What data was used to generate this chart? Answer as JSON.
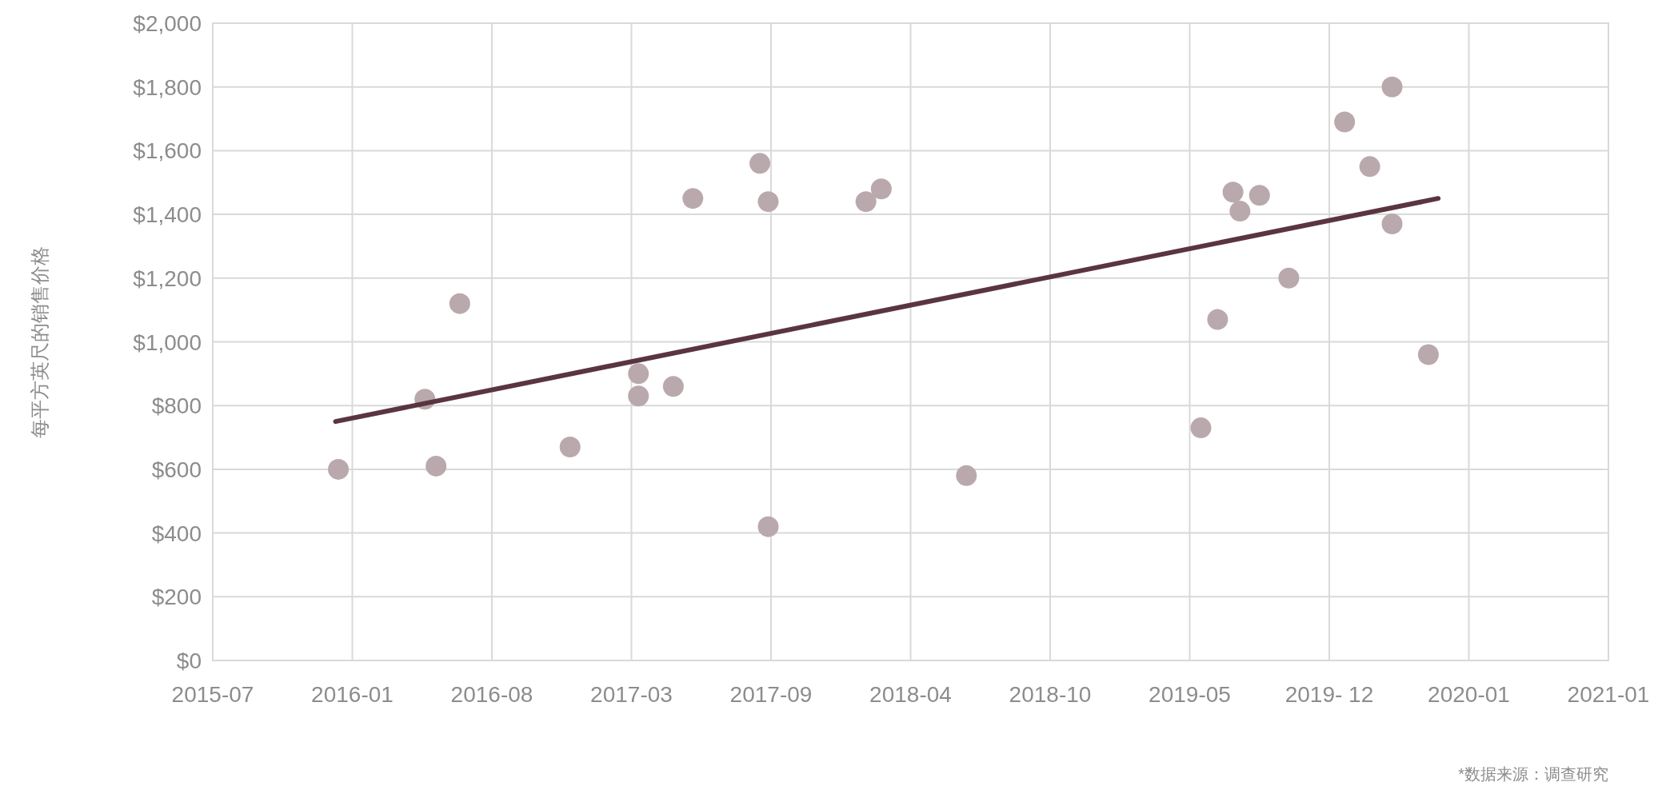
{
  "chart_data": {
    "type": "scatter",
    "ylabel": "每平方英尺的销售价格",
    "annotations": [
      "*数据来源：调查研究"
    ],
    "xlim": [
      "2015-07-15",
      "2021-01-04"
    ],
    "xticks": [
      {
        "value": "2015-07-15",
        "label": "2015-07"
      },
      {
        "value": "2016-01-31",
        "label": "2016-01"
      },
      {
        "value": "2016-08-18",
        "label": "2016-08"
      },
      {
        "value": "2017-03-06",
        "label": "2017-03"
      },
      {
        "value": "2017-09-22",
        "label": "2017-09"
      },
      {
        "value": "2018-04-10",
        "label": "2018-04"
      },
      {
        "value": "2018-10-27",
        "label": "2018-10"
      },
      {
        "value": "2019-05-15",
        "label": "2019-05"
      },
      {
        "value": "2019-12-01",
        "label": "2019- 12"
      },
      {
        "value": "2020-06-18",
        "label": "2020-01"
      },
      {
        "value": "2021-01-04",
        "label": "2021-01"
      }
    ],
    "ylim": [
      0,
      2000
    ],
    "yticks": [
      {
        "value": 0,
        "label": "$0"
      },
      {
        "value": 200,
        "label": "$200"
      },
      {
        "value": 400,
        "label": "$400"
      },
      {
        "value": 600,
        "label": "$600"
      },
      {
        "value": 800,
        "label": "$800"
      },
      {
        "value": 1000,
        "label": "$1,000"
      },
      {
        "value": 1200,
        "label": "$1,200"
      },
      {
        "value": 1400,
        "label": "$1,400"
      },
      {
        "value": 1600,
        "label": "$1,600"
      },
      {
        "value": 1800,
        "label": "$1,800"
      },
      {
        "value": 2000,
        "label": "$2,000"
      }
    ],
    "grid": true,
    "series": [
      {
        "marker": "circle",
        "color": "#b9a9ad",
        "x": [
          "2016-01-11",
          "2016-05-14",
          "2016-05-30",
          "2016-07-03",
          "2016-12-08",
          "2017-03-16",
          "2017-03-16",
          "2017-05-05",
          "2017-06-02",
          "2017-09-06",
          "2017-09-18",
          "2017-09-18",
          "2018-02-05",
          "2018-02-27",
          "2018-06-29",
          "2019-05-31",
          "2019-06-24",
          "2019-07-16",
          "2019-07-26",
          "2019-08-23",
          "2019-10-04",
          "2019-12-23",
          "2020-01-28",
          "2020-02-29",
          "2020-02-29",
          "2020-04-21"
        ],
        "values": [
          600,
          820,
          610,
          1120,
          670,
          900,
          830,
          860,
          1450,
          1560,
          1440,
          420,
          1440,
          1480,
          580,
          730,
          1070,
          1470,
          1410,
          1460,
          1200,
          1690,
          1550,
          1800,
          1370,
          960
        ]
      },
      {
        "type": "line",
        "color": "#5a3540",
        "x": [
          "2016-01-07",
          "2020-05-05"
        ],
        "values": [
          750,
          1450
        ]
      }
    ]
  }
}
